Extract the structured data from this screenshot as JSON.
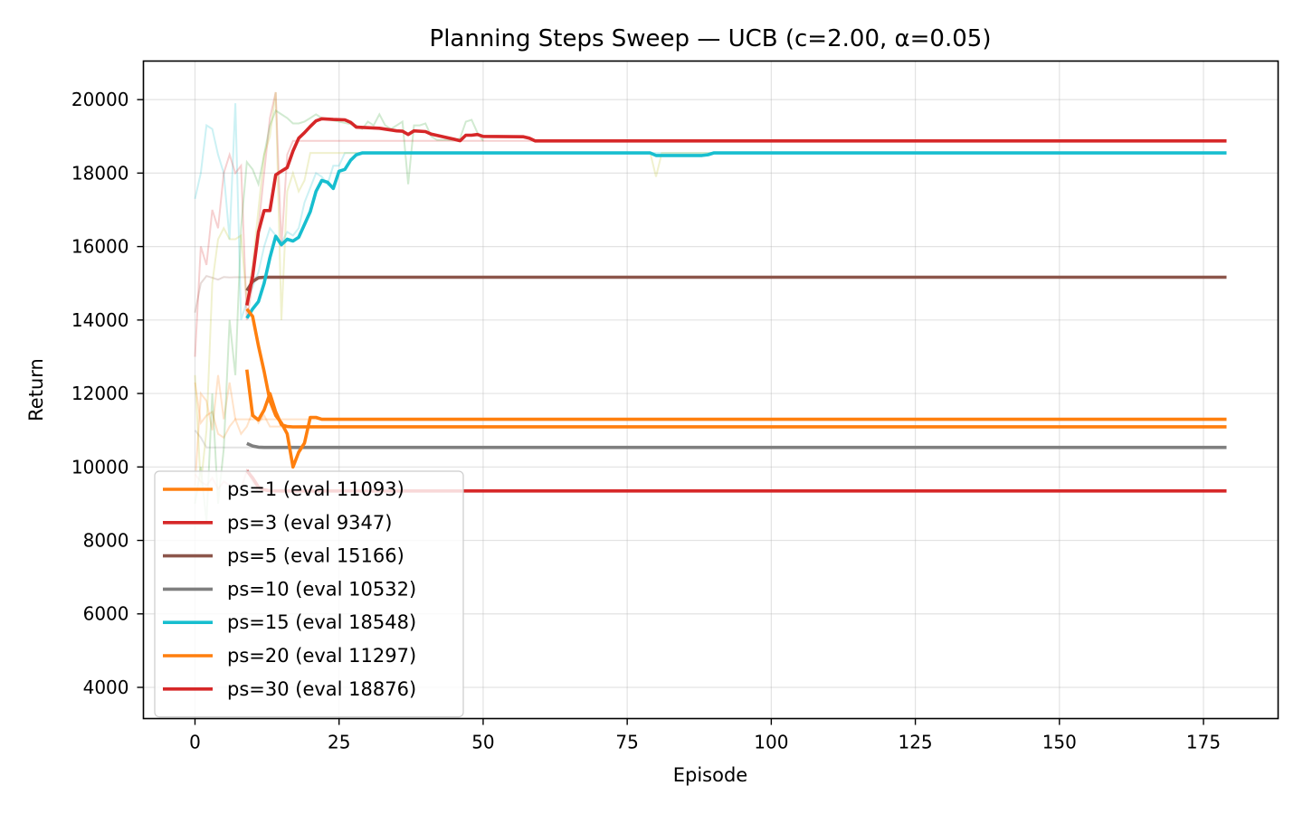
{
  "chart_data": {
    "type": "line",
    "title": "Planning Steps Sweep — UCB (c=2.00, α=0.05)",
    "xlabel": "Episode",
    "ylabel": "Return",
    "xlim": [
      -8.95,
      187.95
    ],
    "ylim": [
      3150,
      21050
    ],
    "xticks": [
      0,
      25,
      50,
      75,
      100,
      125,
      150,
      175
    ],
    "yticks": [
      4000,
      6000,
      8000,
      10000,
      12000,
      14000,
      16000,
      18000,
      20000
    ],
    "grid": true,
    "legend_position": "lower-left",
    "series": [
      {
        "name": "ps=1 (eval 11093)",
        "color": "#ff7f0e",
        "raw_points": [
          [
            0,
            12300
          ],
          [
            1,
            11200
          ],
          [
            2,
            11400
          ],
          [
            3,
            11500
          ],
          [
            4,
            10900
          ],
          [
            5,
            10800
          ],
          [
            6,
            11100
          ],
          [
            7,
            11300
          ],
          [
            8,
            10900
          ],
          [
            9,
            11100
          ],
          [
            10,
            11500
          ],
          [
            11,
            11200
          ],
          [
            12,
            11400
          ],
          [
            13,
            11100
          ],
          [
            14,
            11100
          ],
          [
            15,
            11100
          ],
          [
            20,
            11100
          ],
          [
            179,
            11100
          ]
        ],
        "smooth_points": [
          [
            9,
            12650
          ],
          [
            10,
            11400
          ],
          [
            11,
            11280
          ],
          [
            12,
            11550
          ],
          [
            13,
            12000
          ],
          [
            14,
            11500
          ],
          [
            15,
            11150
          ],
          [
            16,
            11100
          ],
          [
            17,
            11090
          ],
          [
            20,
            11093
          ],
          [
            179,
            11093
          ]
        ]
      },
      {
        "name": "ps=3 (eval 9347)",
        "color": "#d62728",
        "raw_points": [
          [
            0,
            9800
          ],
          [
            1,
            9600
          ],
          [
            2,
            9500
          ],
          [
            3,
            9700
          ],
          [
            4,
            9400
          ],
          [
            5,
            9600
          ],
          [
            6,
            9500
          ],
          [
            7,
            9350
          ],
          [
            8,
            9400
          ],
          [
            9,
            9900
          ],
          [
            10,
            9600
          ],
          [
            11,
            9300
          ],
          [
            12,
            9350
          ],
          [
            14,
            9347
          ],
          [
            179,
            9347
          ]
        ],
        "smooth_points": [
          [
            9,
            9900
          ],
          [
            10,
            9700
          ],
          [
            11,
            9450
          ],
          [
            12,
            9380
          ],
          [
            13,
            9350
          ],
          [
            15,
            9347
          ],
          [
            179,
            9347
          ]
        ]
      },
      {
        "name": "ps=5 (eval 15166)",
        "color": "#8c564b",
        "raw_points": [
          [
            0,
            14200
          ],
          [
            1,
            15000
          ],
          [
            2,
            15200
          ],
          [
            3,
            15150
          ],
          [
            4,
            15100
          ],
          [
            5,
            15170
          ],
          [
            6,
            15160
          ],
          [
            7,
            15166
          ],
          [
            179,
            15166
          ]
        ],
        "smooth_points": [
          [
            9,
            14800
          ],
          [
            10,
            15050
          ],
          [
            11,
            15150
          ],
          [
            12,
            15166
          ],
          [
            179,
            15166
          ]
        ]
      },
      {
        "name": "ps=10 (eval 10532)",
        "color": "#7f7f7f",
        "raw_points": [
          [
            0,
            11000
          ],
          [
            1,
            10800
          ],
          [
            2,
            10532
          ],
          [
            3,
            10532
          ],
          [
            179,
            10532
          ]
        ],
        "smooth_points": [
          [
            9,
            10640
          ],
          [
            10,
            10570
          ],
          [
            11,
            10540
          ],
          [
            12,
            10532
          ],
          [
            179,
            10532
          ]
        ]
      },
      {
        "name": "ps=15 (eval 18548)",
        "color": "#17becf",
        "raw_points": [
          [
            0,
            17300
          ],
          [
            1,
            18000
          ],
          [
            2,
            19300
          ],
          [
            3,
            19200
          ],
          [
            4,
            18500
          ],
          [
            5,
            18000
          ],
          [
            6,
            16200
          ],
          [
            7,
            19900
          ],
          [
            8,
            14000
          ],
          [
            9,
            14500
          ],
          [
            10,
            14900
          ],
          [
            11,
            15300
          ],
          [
            12,
            16000
          ],
          [
            13,
            16500
          ],
          [
            14,
            16300
          ],
          [
            15,
            16100
          ],
          [
            16,
            16400
          ],
          [
            17,
            16300
          ],
          [
            18,
            16500
          ],
          [
            19,
            17200
          ],
          [
            20,
            17600
          ],
          [
            21,
            18000
          ],
          [
            22,
            17900
          ],
          [
            23,
            17700
          ],
          [
            24,
            18200
          ],
          [
            25,
            18200
          ],
          [
            26,
            18548
          ],
          [
            179,
            18548
          ]
        ],
        "smooth_points": [
          [
            9,
            14050
          ],
          [
            10,
            14300
          ],
          [
            11,
            14500
          ],
          [
            12,
            15000
          ],
          [
            13,
            15700
          ],
          [
            14,
            16280
          ],
          [
            15,
            16050
          ],
          [
            16,
            16200
          ],
          [
            17,
            16150
          ],
          [
            18,
            16250
          ],
          [
            19,
            16600
          ],
          [
            20,
            16950
          ],
          [
            21,
            17500
          ],
          [
            22,
            17800
          ],
          [
            23,
            17750
          ],
          [
            24,
            17580
          ],
          [
            25,
            18050
          ],
          [
            26,
            18100
          ],
          [
            27,
            18350
          ],
          [
            28,
            18500
          ],
          [
            29,
            18548
          ],
          [
            79,
            18548
          ],
          [
            80,
            18480
          ],
          [
            88,
            18480
          ],
          [
            89,
            18500
          ],
          [
            90,
            18548
          ],
          [
            179,
            18548
          ]
        ]
      },
      {
        "name": "ps=20 (eval 11297)",
        "color": "#ff7f0e",
        "raw_points": [
          [
            0,
            9500
          ],
          [
            1,
            12000
          ],
          [
            2,
            11800
          ],
          [
            3,
            11000
          ],
          [
            4,
            12500
          ],
          [
            5,
            11300
          ],
          [
            6,
            12300
          ],
          [
            7,
            11297
          ],
          [
            179,
            11297
          ]
        ],
        "smooth_points": [
          [
            9,
            14300
          ],
          [
            10,
            14100
          ],
          [
            11,
            13300
          ],
          [
            12,
            12600
          ],
          [
            13,
            11800
          ],
          [
            14,
            11400
          ],
          [
            15,
            11200
          ],
          [
            16,
            10900
          ],
          [
            17,
            10000
          ],
          [
            18,
            10400
          ],
          [
            19,
            10650
          ],
          [
            20,
            11350
          ],
          [
            21,
            11350
          ],
          [
            22,
            11297
          ],
          [
            179,
            11297
          ]
        ]
      },
      {
        "name": "ps=30 (eval 18876)",
        "color": "#d62728",
        "raw_points": [
          [
            0,
            13000
          ],
          [
            1,
            16000
          ],
          [
            2,
            15500
          ],
          [
            3,
            17000
          ],
          [
            4,
            16500
          ],
          [
            5,
            18000
          ],
          [
            6,
            18500
          ],
          [
            7,
            18000
          ],
          [
            8,
            18200
          ],
          [
            9,
            14000
          ],
          [
            10,
            15000
          ],
          [
            11,
            16500
          ],
          [
            12,
            18000
          ],
          [
            13,
            19500
          ],
          [
            14,
            20200
          ],
          [
            15,
            16000
          ],
          [
            16,
            18500
          ],
          [
            17,
            18876
          ],
          [
            179,
            18876
          ]
        ],
        "smooth_points": [
          [
            9,
            14400
          ],
          [
            10,
            15200
          ],
          [
            11,
            16400
          ],
          [
            12,
            16980
          ],
          [
            13,
            16980
          ],
          [
            14,
            17950
          ],
          [
            15,
            18050
          ],
          [
            16,
            18150
          ],
          [
            17,
            18600
          ],
          [
            18,
            18950
          ],
          [
            19,
            19100
          ],
          [
            20,
            19270
          ],
          [
            21,
            19420
          ],
          [
            22,
            19480
          ],
          [
            23,
            19470
          ],
          [
            24,
            19460
          ],
          [
            26,
            19450
          ],
          [
            27,
            19380
          ],
          [
            28,
            19250
          ],
          [
            32,
            19220
          ],
          [
            35,
            19150
          ],
          [
            36,
            19140
          ],
          [
            37,
            19050
          ],
          [
            38,
            19150
          ],
          [
            40,
            19130
          ],
          [
            41,
            19060
          ],
          [
            45,
            18920
          ],
          [
            46,
            18880
          ],
          [
            47,
            19030
          ],
          [
            48,
            19030
          ],
          [
            49,
            19050
          ],
          [
            50,
            19000
          ],
          [
            57,
            18990
          ],
          [
            58,
            18950
          ],
          [
            59,
            18876
          ],
          [
            179,
            18876
          ]
        ]
      }
    ],
    "extra_raw_traces": [
      {
        "color": "#2ca02c",
        "points": [
          [
            0,
            9000
          ],
          [
            1,
            10000
          ],
          [
            2,
            8500
          ],
          [
            3,
            12000
          ],
          [
            4,
            9000
          ],
          [
            5,
            10500
          ],
          [
            6,
            14000
          ],
          [
            7,
            12500
          ],
          [
            8,
            16500
          ],
          [
            9,
            18300
          ],
          [
            10,
            18100
          ],
          [
            11,
            17700
          ],
          [
            12,
            18500
          ],
          [
            13,
            19300
          ],
          [
            14,
            19700
          ],
          [
            15,
            19600
          ],
          [
            16,
            19500
          ],
          [
            17,
            19350
          ],
          [
            18,
            19350
          ],
          [
            19,
            19400
          ],
          [
            20,
            19500
          ],
          [
            21,
            19600
          ],
          [
            22,
            19500
          ],
          [
            25,
            19400
          ],
          [
            28,
            19300
          ],
          [
            29,
            19200
          ],
          [
            30,
            19400
          ],
          [
            31,
            19300
          ],
          [
            32,
            19600
          ],
          [
            33,
            19300
          ],
          [
            34,
            19200
          ],
          [
            35,
            19300
          ],
          [
            36,
            19400
          ],
          [
            37,
            17700
          ],
          [
            38,
            19300
          ],
          [
            39,
            19300
          ],
          [
            40,
            19350
          ],
          [
            41,
            19000
          ],
          [
            42,
            18900
          ],
          [
            45,
            18900
          ],
          [
            46,
            18950
          ],
          [
            47,
            19400
          ],
          [
            48,
            19450
          ],
          [
            49,
            19100
          ],
          [
            50,
            18876
          ]
        ]
      },
      {
        "color": "#bcbd22",
        "points": [
          [
            0,
            12500
          ],
          [
            1,
            9500
          ],
          [
            2,
            11000
          ],
          [
            3,
            15000
          ],
          [
            4,
            16200
          ],
          [
            5,
            16500
          ],
          [
            6,
            16200
          ],
          [
            7,
            16200
          ],
          [
            8,
            16300
          ],
          [
            9,
            14500
          ],
          [
            10,
            15500
          ],
          [
            11,
            17000
          ],
          [
            12,
            18500
          ],
          [
            13,
            19000
          ],
          [
            14,
            20200
          ],
          [
            15,
            14000
          ],
          [
            16,
            17500
          ],
          [
            17,
            18000
          ],
          [
            18,
            17500
          ],
          [
            19,
            17800
          ],
          [
            20,
            18548
          ],
          [
            25,
            18548
          ],
          [
            75,
            18548
          ],
          [
            79,
            18548
          ],
          [
            80,
            17900
          ],
          [
            81,
            18548
          ],
          [
            179,
            18548
          ]
        ]
      }
    ]
  }
}
